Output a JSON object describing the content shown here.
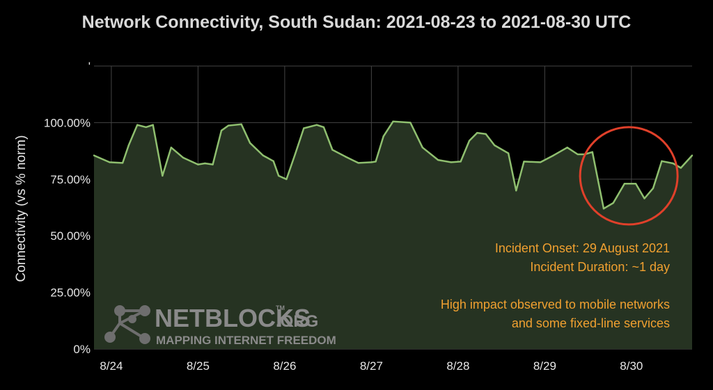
{
  "chart_data": {
    "type": "area",
    "title": "Network Connectivity, South Sudan: 2021-08-23 to 2021-08-30 UTC",
    "ylabel": "Connectivity (vs % norm)",
    "xlabel": "",
    "x_range": [
      23.8,
      30.7
    ],
    "ylim": [
      0,
      125
    ],
    "grid": true,
    "x_ticks": [
      {
        "value": 24,
        "label": "8/24"
      },
      {
        "value": 25,
        "label": "8/25"
      },
      {
        "value": 26,
        "label": "8/26"
      },
      {
        "value": 27,
        "label": "8/27"
      },
      {
        "value": 28,
        "label": "8/28"
      },
      {
        "value": 29,
        "label": "8/29"
      },
      {
        "value": 30,
        "label": "8/30"
      }
    ],
    "y_ticks": [
      {
        "value": 0,
        "label": "0%"
      },
      {
        "value": 25,
        "label": "25.00%"
      },
      {
        "value": 50,
        "label": "50.00%"
      },
      {
        "value": 75,
        "label": "75.00%"
      },
      {
        "value": 100,
        "label": "100.00%"
      },
      {
        "value": 125,
        "label": "'"
      }
    ],
    "series": [
      {
        "line_color": "#8fbf6f",
        "fill_color": "#263322",
        "points": [
          [
            23.8,
            85.5
          ],
          [
            23.98,
            82.5
          ],
          [
            24.13,
            82.2
          ],
          [
            24.2,
            90.0
          ],
          [
            24.3,
            99.0
          ],
          [
            24.4,
            98.0
          ],
          [
            24.48,
            99.0
          ],
          [
            24.59,
            76.5
          ],
          [
            24.69,
            89.0
          ],
          [
            24.83,
            84.5
          ],
          [
            25.0,
            81.5
          ],
          [
            25.08,
            82.0
          ],
          [
            25.17,
            81.5
          ],
          [
            25.27,
            96.5
          ],
          [
            25.35,
            98.7
          ],
          [
            25.5,
            99.3
          ],
          [
            25.6,
            91.0
          ],
          [
            25.75,
            85.5
          ],
          [
            25.87,
            83.0
          ],
          [
            25.93,
            76.5
          ],
          [
            26.02,
            75.0
          ],
          [
            26.12,
            86.0
          ],
          [
            26.22,
            97.5
          ],
          [
            26.37,
            99.0
          ],
          [
            26.45,
            98.0
          ],
          [
            26.55,
            88.0
          ],
          [
            26.7,
            85.0
          ],
          [
            26.85,
            82.2
          ],
          [
            27.0,
            82.5
          ],
          [
            27.05,
            82.8
          ],
          [
            27.14,
            94.0
          ],
          [
            27.25,
            100.5
          ],
          [
            27.45,
            100.0
          ],
          [
            27.59,
            89.0
          ],
          [
            27.77,
            83.5
          ],
          [
            27.92,
            82.5
          ],
          [
            28.03,
            82.8
          ],
          [
            28.13,
            92.0
          ],
          [
            28.22,
            95.5
          ],
          [
            28.32,
            95.0
          ],
          [
            28.42,
            90.0
          ],
          [
            28.58,
            86.5
          ],
          [
            28.67,
            70.0
          ],
          [
            28.76,
            82.8
          ],
          [
            28.95,
            82.5
          ],
          [
            29.1,
            85.5
          ],
          [
            29.26,
            89.0
          ],
          [
            29.38,
            86.0
          ],
          [
            29.46,
            86.0
          ],
          [
            29.55,
            87.0
          ],
          [
            29.68,
            62.0
          ],
          [
            29.79,
            64.5
          ],
          [
            29.92,
            73.0
          ],
          [
            30.05,
            73.0
          ],
          [
            30.15,
            66.5
          ],
          [
            30.25,
            71.0
          ],
          [
            30.35,
            83.0
          ],
          [
            30.48,
            82.0
          ],
          [
            30.57,
            80.0
          ],
          [
            30.7,
            85.5
          ]
        ]
      }
    ],
    "highlight": {
      "shape": "circle",
      "color": "#e0402a",
      "center": [
        29.97,
        76.5
      ]
    },
    "annotations": {
      "onset": "Incident Onset: 29 August 2021",
      "duration": "Incident Duration: ~1 day",
      "impact_line1": "High impact observed to mobile networks",
      "impact_line2": "and some fixed-line services"
    },
    "watermark": {
      "brand": "NETBLOCKS",
      "tm": "TM",
      "suffix": ".ORG",
      "tagline": "MAPPING INTERNET FREEDOM",
      "icon": "netblocks-network-logo-icon"
    }
  }
}
